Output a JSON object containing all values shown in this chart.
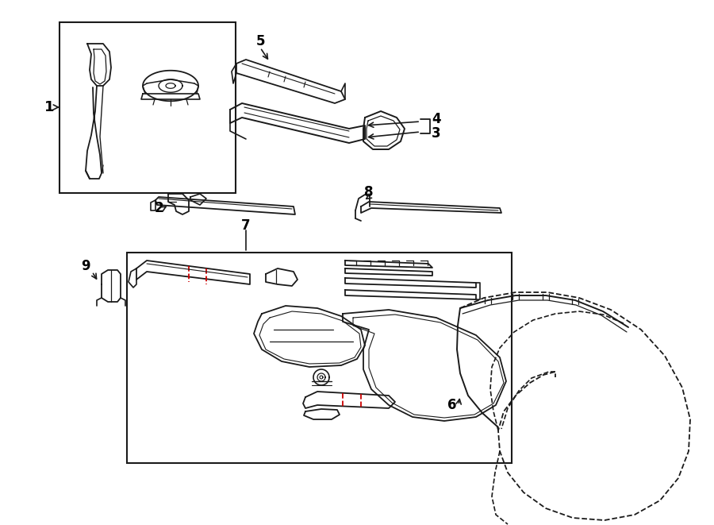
{
  "bg_color": "#ffffff",
  "line_color": "#1a1a1a",
  "red_color": "#cc0000",
  "label_color": "#000000",
  "fig_width": 9.0,
  "fig_height": 6.61,
  "dpi": 100
}
